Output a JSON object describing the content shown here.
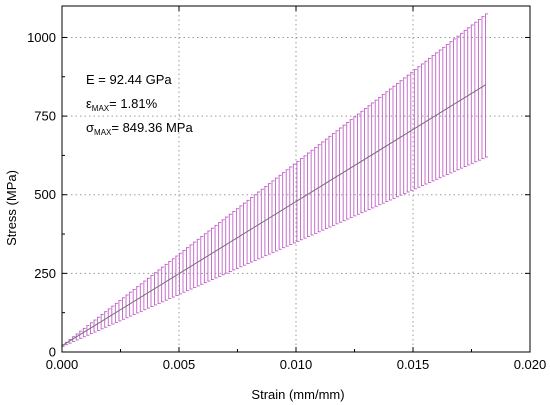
{
  "chart_data": {
    "type": "line",
    "xlabel": "Strain (mm/mm)",
    "ylabel": "Stress (MPa)",
    "xlim": [
      0.0,
      0.02
    ],
    "ylim": [
      0,
      1100
    ],
    "x_ticks": [
      0.0,
      0.005,
      0.01,
      0.015,
      0.02
    ],
    "x_tick_labels": [
      "0.000",
      "0.005",
      "0.010",
      "0.015",
      "0.020"
    ],
    "y_ticks": [
      0,
      250,
      500,
      750,
      1000
    ],
    "y_tick_labels": [
      "0",
      "250",
      "500",
      "750",
      "1000"
    ],
    "grid": true,
    "series": [
      {
        "type": "line-with-error-bars",
        "x_start": 0.0,
        "x_end": 0.0181,
        "y_start": 20,
        "y_end": 849.36,
        "error_low_start": 18,
        "error_low_end": 620,
        "error_high_start": 22,
        "error_high_end": 1075,
        "num_error_bars": 120,
        "line_color": "#707070",
        "error_color": "#c060c8"
      }
    ],
    "annotations": {
      "line1": "E = 92.44 GPa",
      "line2_symbol": "ε",
      "line2_sub": "MAX",
      "line2_rest": "= 1.81%",
      "line3_symbol": "σ",
      "line3_sub": "MAX",
      "line3_rest": "= 849.36 MPa"
    }
  }
}
